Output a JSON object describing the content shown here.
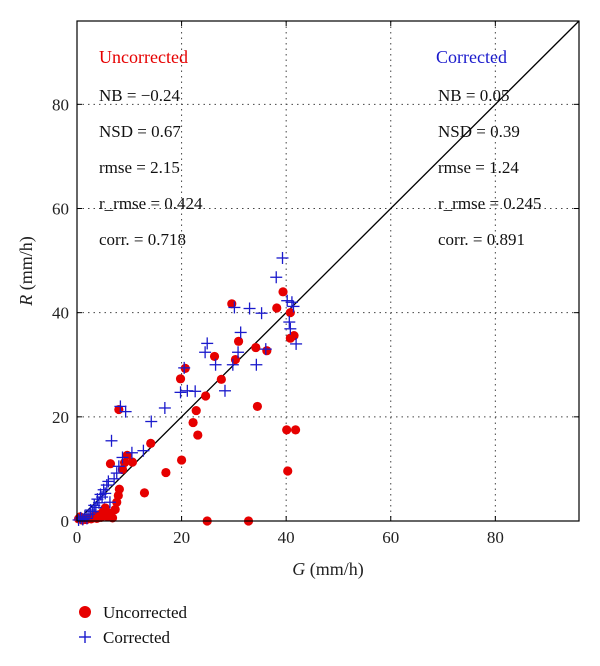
{
  "chart_data": {
    "type": "scatter",
    "xlabel_var": "G",
    "xlabel_unit": " (mm/h)",
    "ylabel_var": "R",
    "ylabel_unit": " (mm/h)",
    "xlim": [
      0,
      96
    ],
    "ylim": [
      0,
      96
    ],
    "xticks": [
      0,
      20,
      40,
      60,
      80
    ],
    "yticks": [
      0,
      20,
      40,
      60,
      80
    ],
    "grid": true,
    "reference_line": "1:1",
    "legend_position": "bottom-left",
    "series": [
      {
        "name": "Uncorrected",
        "marker": "filled-circle",
        "color": "#e60000",
        "points": [
          [
            0.3,
            0.4
          ],
          [
            0.6,
            0.8
          ],
          [
            1.0,
            0.2
          ],
          [
            1.3,
            0.5
          ],
          [
            1.8,
            0.3
          ],
          [
            2.2,
            0.6
          ],
          [
            2.7,
            0.4
          ],
          [
            3.2,
            0.9
          ],
          [
            3.8,
            0.5
          ],
          [
            4.2,
            1.2
          ],
          [
            4.6,
            0.7
          ],
          [
            5.0,
            1.8
          ],
          [
            5.4,
            2.5
          ],
          [
            5.8,
            0.9
          ],
          [
            6.3,
            1.5
          ],
          [
            6.8,
            0.6
          ],
          [
            7.3,
            2.2
          ],
          [
            7.6,
            3.6
          ],
          [
            7.9,
            4.9
          ],
          [
            8.1,
            6.1
          ],
          [
            8.0,
            21.4
          ],
          [
            8.7,
            9.9
          ],
          [
            9.1,
            11.2
          ],
          [
            9.6,
            12.6
          ],
          [
            6.4,
            11.0
          ],
          [
            10.6,
            11.3
          ],
          [
            12.9,
            5.4
          ],
          [
            14.1,
            14.9
          ],
          [
            17.0,
            9.3
          ],
          [
            20.0,
            11.7
          ],
          [
            19.8,
            27.3
          ],
          [
            20.7,
            29.3
          ],
          [
            22.2,
            18.9
          ],
          [
            23.1,
            16.5
          ],
          [
            22.8,
            21.2
          ],
          [
            24.6,
            24.0
          ],
          [
            26.3,
            31.6
          ],
          [
            27.6,
            27.2
          ],
          [
            29.6,
            41.7
          ],
          [
            30.3,
            31.0
          ],
          [
            30.9,
            34.5
          ],
          [
            32.8,
            0.0
          ],
          [
            34.2,
            33.3
          ],
          [
            34.5,
            22.0
          ],
          [
            36.3,
            32.7
          ],
          [
            38.2,
            40.9
          ],
          [
            39.4,
            44.0
          ],
          [
            40.1,
            17.5
          ],
          [
            40.3,
            9.6
          ],
          [
            40.8,
            40.0
          ],
          [
            40.8,
            35.1
          ],
          [
            41.5,
            35.6
          ],
          [
            41.8,
            17.5
          ],
          [
            24.9,
            0.0
          ]
        ]
      },
      {
        "name": "Corrected",
        "marker": "plus",
        "color": "#1a1acc",
        "points": [
          [
            0.3,
            0.2
          ],
          [
            0.7,
            0.6
          ],
          [
            1.1,
            0.3
          ],
          [
            1.5,
            0.9
          ],
          [
            1.9,
            0.5
          ],
          [
            2.3,
            1.3
          ],
          [
            2.6,
            2.1
          ],
          [
            3.0,
            1.8
          ],
          [
            3.3,
            3.0
          ],
          [
            3.6,
            2.6
          ],
          [
            3.9,
            4.2
          ],
          [
            4.2,
            3.5
          ],
          [
            4.5,
            5.1
          ],
          [
            4.8,
            4.6
          ],
          [
            5.1,
            6.0
          ],
          [
            5.4,
            5.3
          ],
          [
            5.7,
            6.9
          ],
          [
            6.0,
            7.6
          ],
          [
            6.3,
            3.6
          ],
          [
            6.6,
            15.4
          ],
          [
            7.1,
            8.1
          ],
          [
            7.6,
            9.2
          ],
          [
            8.0,
            10.5
          ],
          [
            8.3,
            22.0
          ],
          [
            8.7,
            12.2
          ],
          [
            9.3,
            21.0
          ],
          [
            10.5,
            13.1
          ],
          [
            12.7,
            13.5
          ],
          [
            14.2,
            19.1
          ],
          [
            16.8,
            21.7
          ],
          [
            19.8,
            24.7
          ],
          [
            20.5,
            29.4
          ],
          [
            21.1,
            25.0
          ],
          [
            22.6,
            24.9
          ],
          [
            24.5,
            32.4
          ],
          [
            24.9,
            34.1
          ],
          [
            26.5,
            30.0
          ],
          [
            28.3,
            25.0
          ],
          [
            29.8,
            30.0
          ],
          [
            30.1,
            41.0
          ],
          [
            30.8,
            32.4
          ],
          [
            31.3,
            36.2
          ],
          [
            33.0,
            40.8
          ],
          [
            34.3,
            30.0
          ],
          [
            35.3,
            39.9
          ],
          [
            36.1,
            33.0
          ],
          [
            38.1,
            46.8
          ],
          [
            39.3,
            50.5
          ],
          [
            40.2,
            42.3
          ],
          [
            40.6,
            38.2
          ],
          [
            41.1,
            42.0
          ],
          [
            41.4,
            41.2
          ],
          [
            41.9,
            34.0
          ],
          [
            40.8,
            36.9
          ]
        ]
      }
    ],
    "annotations": {
      "uncorrected": {
        "title": "Uncorrected",
        "lines": [
          "NB = −0.24",
          "NSD = 0.67",
          "rmse = 2.15",
          "r_rmse = 0.424",
          "corr. = 0.718"
        ]
      },
      "corrected": {
        "title": "Corrected",
        "lines": [
          "NB = 0.05",
          "NSD = 0.39",
          "rmse = 1.24",
          "r_rmse = 0.245",
          "corr. = 0.891"
        ]
      }
    },
    "legend": [
      {
        "label": "Uncorrected",
        "marker": "filled-circle",
        "color": "#e60000"
      },
      {
        "label": "Corrected",
        "marker": "plus",
        "color": "#1a1acc"
      }
    ]
  }
}
